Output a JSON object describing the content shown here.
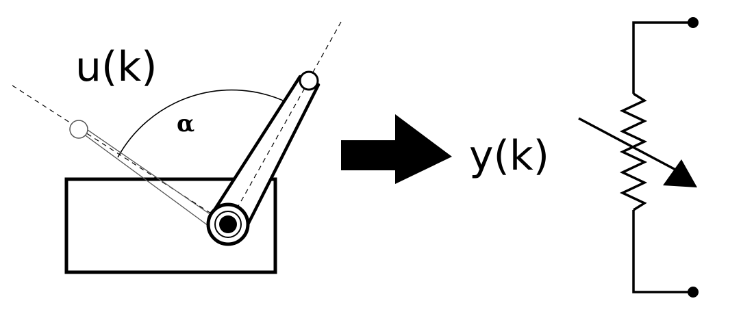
{
  "labels": {
    "input": "u(k)",
    "angle": "α",
    "output": "y(k)"
  },
  "colors": {
    "ink": "#000000",
    "paper": "#ffffff",
    "ghost": "#444444"
  }
}
